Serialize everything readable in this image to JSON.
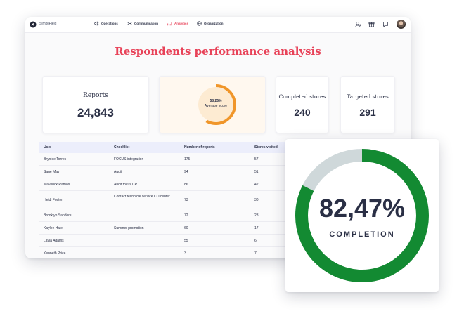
{
  "app": {
    "brand": "SimpliField",
    "nav": [
      {
        "label": "Operations",
        "icon": "megaphone-icon"
      },
      {
        "label": "Communication",
        "icon": "arrows-icon"
      },
      {
        "label": "Analytics",
        "icon": "chart-icon"
      },
      {
        "label": "Organization",
        "icon": "globe-icon"
      }
    ],
    "active_nav": "Analytics",
    "top_icons": [
      "user-icon",
      "gift-icon",
      "chat-icon"
    ]
  },
  "page": {
    "title": "Respondents performance analysis"
  },
  "cards": {
    "reports": {
      "label": "Reports",
      "value": "24,843"
    },
    "average": {
      "value": "58,26%",
      "label": "Average score",
      "fraction": 0.5826
    },
    "completed": {
      "label": "Completed stores",
      "value": "240"
    },
    "targeted": {
      "label": "Targeted stores",
      "value": "291"
    }
  },
  "table": {
    "headers": [
      "User",
      "Checklist",
      "Number of reports",
      "Stores visited"
    ],
    "rows": [
      {
        "user": "Brynlee Torres",
        "checklist": "FOCUS integration",
        "reports": "175",
        "stores": "57"
      },
      {
        "user": "Sage May",
        "checklist": "Audit",
        "reports": "94",
        "stores": "51"
      },
      {
        "user": "Maverick Ramos",
        "checklist": "Audit focus CP",
        "reports": "86",
        "stores": "42"
      },
      {
        "user": "Heidi Foster",
        "checklist": "Contact technical service CO center",
        "reports": "73",
        "stores": "30"
      },
      {
        "user": "Brooklyn Sanders",
        "checklist": "",
        "reports": "72",
        "stores": "23"
      },
      {
        "user": "Kaylee Hale",
        "checklist": "Summer promotion",
        "reports": "60",
        "stores": "17"
      },
      {
        "user": "Layla Adams",
        "checklist": "",
        "reports": "55",
        "stores": "6"
      },
      {
        "user": "Kenneth Price",
        "checklist": "",
        "reports": "3",
        "stores": "7"
      }
    ]
  },
  "completion": {
    "value": "82,47%",
    "label": "COMPLETION",
    "fraction": 0.8247
  },
  "colors": {
    "accent": "#e84258",
    "orange": "#f0962a",
    "green": "#138a32",
    "track": "#cfd8da"
  }
}
